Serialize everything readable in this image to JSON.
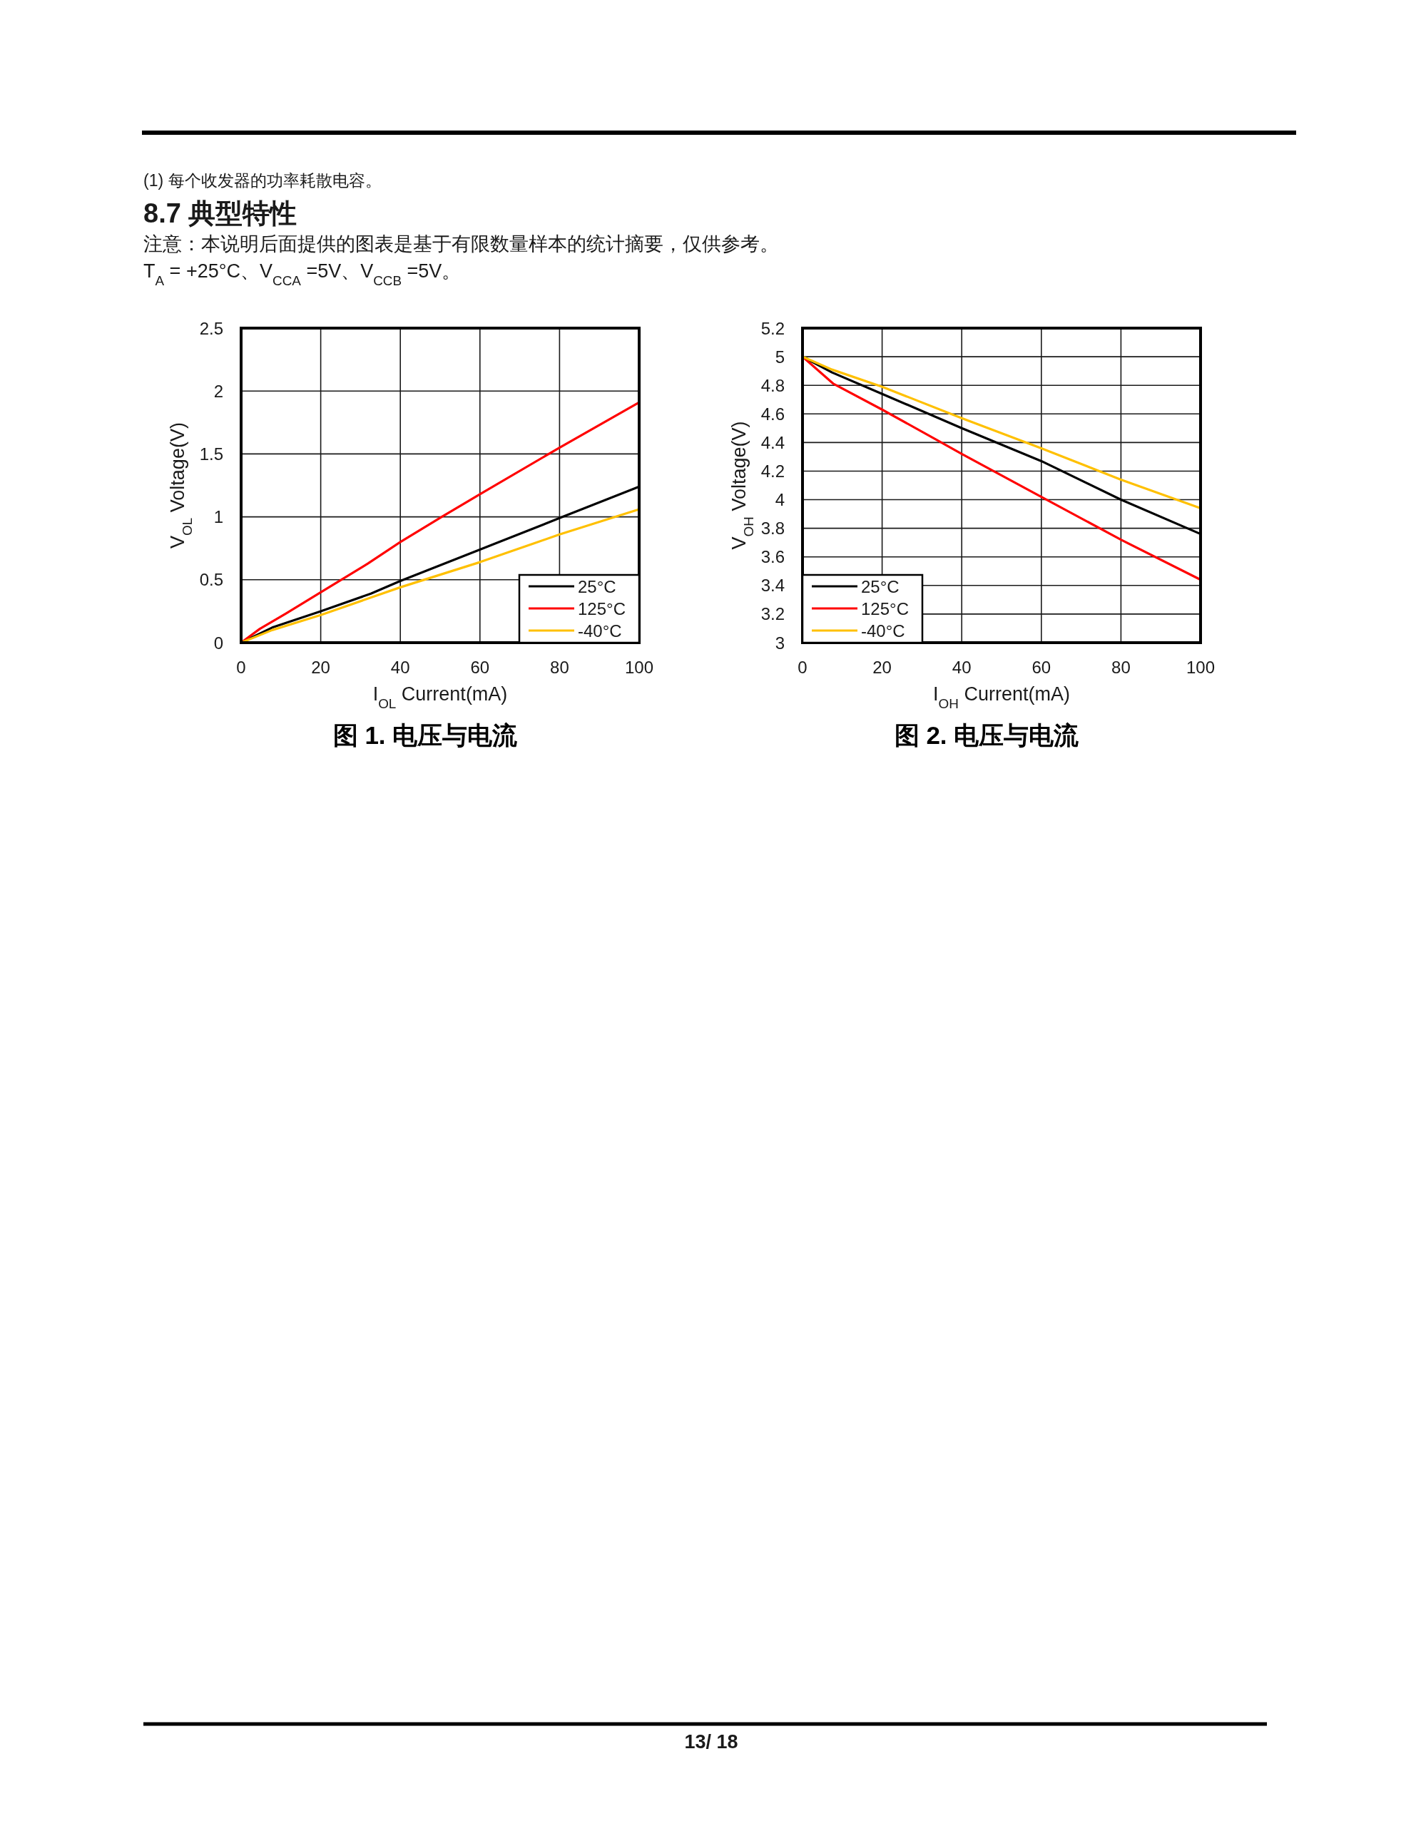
{
  "chart_data": [
    {
      "type": "line",
      "title": "图 1. 电压与电流",
      "xlabel": "I$_{OL}$ Current(mA)",
      "ylabel": "V$_{OL}$ Voltage(V)",
      "xlim": [
        0,
        100
      ],
      "ylim": [
        0,
        2.5
      ],
      "xticks": [
        0,
        20,
        40,
        60,
        80,
        100
      ],
      "yticks": [
        0,
        0.5,
        1,
        1.5,
        2,
        2.5
      ],
      "grid": true,
      "legend": "bottom right",
      "line_style": "solid",
      "series": [
        {
          "name": "25°C",
          "color": "#000000",
          "x": [
            0,
            7.8,
            20,
            32.6,
            40,
            60,
            80,
            100
          ],
          "values": [
            0,
            0.12,
            0.25,
            0.39,
            0.49,
            0.74,
            0.99,
            1.24
          ]
        },
        {
          "name": "125°C",
          "color": "#ff0000",
          "x": [
            0,
            4.7,
            11.2,
            20,
            31.9,
            40,
            50.4,
            60,
            80,
            100
          ],
          "values": [
            0,
            0.11,
            0.23,
            0.4,
            0.63,
            0.8,
            1.0,
            1.18,
            1.55,
            1.91
          ]
        },
        {
          "name": "-40°C",
          "color": "#ffc000",
          "x": [
            0,
            7.8,
            20,
            40,
            60,
            80,
            100
          ],
          "values": [
            0,
            0.1,
            0.22,
            0.44,
            0.64,
            0.86,
            1.06
          ]
        }
      ],
      "annotations": [
        "(1) 每个收发器的功率耗散电容。",
        "8.7 典型特性",
        "注意：本说明后面提供的图表是基于有限数量样本的统计摘要，仅供参考。",
        "T$_{A}$ = +25°C、V$_{CCA}$ =5V、V$_{CCB}$ =5V。",
        "13/ 18"
      ]
    },
    {
      "type": "line",
      "title": "图 2. 电压与电流",
      "xlabel": "I$_{OH}$ Current(mA)",
      "ylabel": "V$_{OH}$ Voltage(V)",
      "xlim": [
        0,
        100
      ],
      "ylim": [
        3,
        5.2
      ],
      "xticks": [
        0,
        20,
        40,
        60,
        80,
        100
      ],
      "yticks": [
        3,
        3.2,
        3.4,
        3.6,
        3.8,
        4,
        4.2,
        4.4,
        4.6,
        4.8,
        5,
        5.2
      ],
      "grid": true,
      "legend": "bottom left",
      "line_style": "solid",
      "series": [
        {
          "name": "25°C",
          "color": "#000000",
          "x": [
            0,
            7.4,
            20,
            40,
            60,
            80,
            100
          ],
          "values": [
            5,
            4.89,
            4.74,
            4.5,
            4.27,
            4.0,
            3.76
          ]
        },
        {
          "name": "125°C",
          "color": "#ff0000",
          "x": [
            0,
            7.8,
            20,
            33.6,
            40,
            60,
            80,
            100
          ],
          "values": [
            5,
            4.81,
            4.63,
            4.42,
            4.32,
            4.02,
            3.72,
            3.44
          ]
        },
        {
          "name": "-40°C",
          "color": "#ffc000",
          "x": [
            0,
            7.4,
            20,
            40,
            60,
            80,
            100
          ],
          "values": [
            5,
            4.91,
            4.79,
            4.57,
            4.36,
            4.14,
            3.94
          ]
        }
      ]
    }
  ]
}
